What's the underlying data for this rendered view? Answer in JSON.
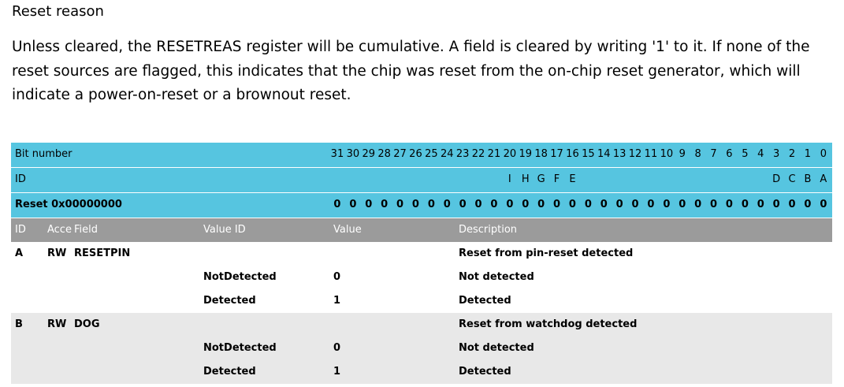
{
  "title": "Reset reason",
  "description": "Unless cleared, the RESETREAS register will be cumulative. A field is cleared by writing '1' to it. If none of the reset sources are flagged, this indicates that the chip was reset from the on-chip reset generator, which will indicate a power-on-reset or a brownout reset.",
  "register": {
    "bit_label": "Bit number",
    "bits": [
      31,
      30,
      29,
      28,
      27,
      26,
      25,
      24,
      23,
      22,
      21,
      20,
      19,
      18,
      17,
      16,
      15,
      14,
      13,
      12,
      11,
      10,
      9,
      8,
      7,
      6,
      5,
      4,
      3,
      2,
      1,
      0
    ],
    "id_label": "ID",
    "ids": [
      null,
      null,
      null,
      null,
      null,
      null,
      null,
      null,
      null,
      null,
      null,
      "I",
      "H",
      "G",
      "F",
      "E",
      null,
      null,
      null,
      null,
      null,
      null,
      null,
      null,
      null,
      null,
      null,
      null,
      "D",
      "C",
      "B",
      "A"
    ],
    "reset_label": "Reset 0x00000000",
    "reset_bits": [
      0,
      0,
      0,
      0,
      0,
      0,
      0,
      0,
      0,
      0,
      0,
      0,
      0,
      0,
      0,
      0,
      0,
      0,
      0,
      0,
      0,
      0,
      0,
      0,
      0,
      0,
      0,
      0,
      0,
      0,
      0,
      0
    ]
  },
  "fields": {
    "header": [
      "ID",
      "Acce",
      "Field",
      "Value ID",
      "Value",
      "Description"
    ],
    "rows": [
      {
        "id": "A",
        "access": "RW",
        "field": "RESETPIN",
        "description": "Reset from pin-reset detected",
        "values": [
          {
            "value_id": "NotDetected",
            "value": 0,
            "description": "Not detected"
          },
          {
            "value_id": "Detected",
            "value": 1,
            "description": "Detected"
          }
        ]
      },
      {
        "id": "B",
        "access": "RW",
        "field": "DOG",
        "description": "Reset from watchdog detected",
        "values": [
          {
            "value_id": "NotDetected",
            "value": 0,
            "description": "Not detected"
          },
          {
            "value_id": "Detected",
            "value": 1,
            "description": "Detected"
          }
        ]
      }
    ]
  }
}
